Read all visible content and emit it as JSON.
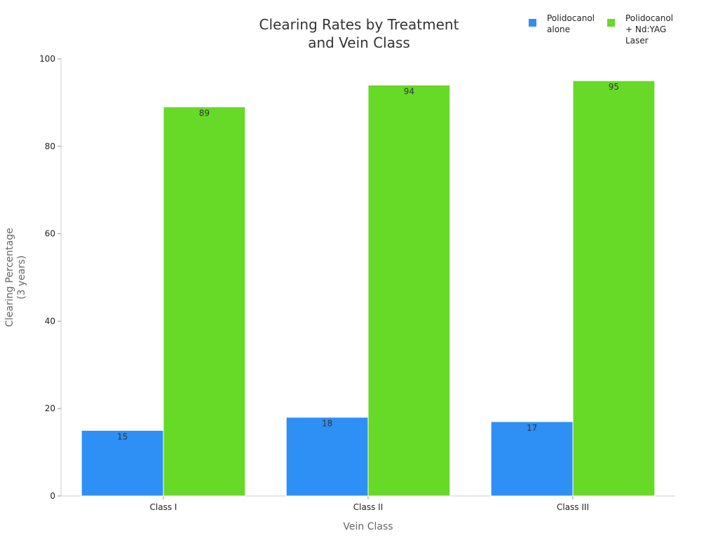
{
  "chart_data": {
    "type": "bar",
    "title": [
      "Clearing Rates by Treatment",
      "and Vein Class"
    ],
    "xlabel": "Vein Class",
    "ylabel": [
      "Clearing Percentage",
      "(3 years)"
    ],
    "categories": [
      "Class I",
      "Class II",
      "Class III"
    ],
    "series": [
      {
        "name": [
          "Polidocanol",
          "alone"
        ],
        "color": "#2e8ff5",
        "values": [
          15,
          18,
          17
        ]
      },
      {
        "name": [
          "Polidocanol",
          "+ Nd:YAG",
          "Laser"
        ],
        "color": "#66da26",
        "values": [
          89,
          94,
          95
        ]
      }
    ],
    "ylim": [
      0,
      100
    ],
    "yticks": [
      0,
      20,
      40,
      60,
      80,
      100
    ],
    "grid": false,
    "legend_position": "top-right",
    "data_labels": true
  }
}
